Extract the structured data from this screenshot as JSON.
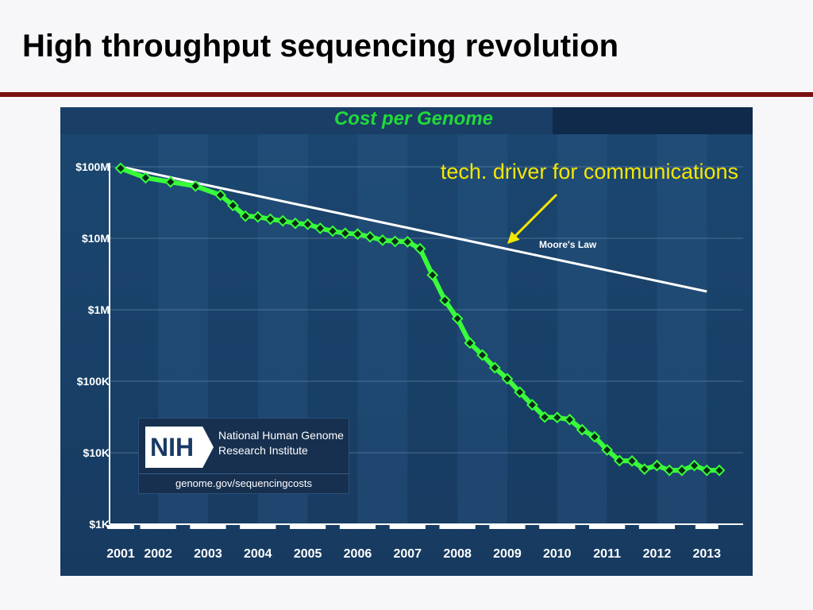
{
  "slide": {
    "title": "High throughput sequencing revolution",
    "annotation": "tech. driver for communications",
    "annotation_color": "#f7e600",
    "rule_color": "#7a1010"
  },
  "nih": {
    "logo_text": "NIH",
    "name_line1": "National Human Genome",
    "name_line2": "Research Institute",
    "url": "genome.gov/sequencingcosts"
  },
  "chart_data": {
    "type": "line",
    "title": "Cost per Genome",
    "title_color": "#22d93a",
    "y_scale": "log",
    "ylim": [
      1000,
      100000000
    ],
    "y_ticks": [
      {
        "value": 100000000,
        "label": "$100M"
      },
      {
        "value": 10000000,
        "label": "$10M"
      },
      {
        "value": 1000000,
        "label": "$1M"
      },
      {
        "value": 100000,
        "label": "$100K"
      },
      {
        "value": 10000,
        "label": "$10K"
      },
      {
        "value": 1000,
        "label": "$1K"
      }
    ],
    "x_ticks": [
      {
        "value": 2001.0,
        "label": "2001"
      },
      {
        "value": 2001.75,
        "label": "2002"
      },
      {
        "value": 2002.75,
        "label": "2003"
      },
      {
        "value": 2003.75,
        "label": "2004"
      },
      {
        "value": 2004.75,
        "label": "2005"
      },
      {
        "value": 2005.75,
        "label": "2006"
      },
      {
        "value": 2006.75,
        "label": "2007"
      },
      {
        "value": 2007.75,
        "label": "2008"
      },
      {
        "value": 2008.75,
        "label": "2009"
      },
      {
        "value": 2009.75,
        "label": "2010"
      },
      {
        "value": 2010.75,
        "label": "2011"
      },
      {
        "value": 2011.75,
        "label": "2012"
      },
      {
        "value": 2012.75,
        "label": "2013"
      }
    ],
    "grid": true,
    "series": [
      {
        "name": "",
        "color": "#39ff3a",
        "x": [
          2001.0,
          2001.5,
          2002.0,
          2002.5,
          2003.0,
          2003.25,
          2003.5,
          2003.75,
          2004.0,
          2004.25,
          2004.5,
          2004.75,
          2005.0,
          2005.25,
          2005.5,
          2005.75,
          2006.0,
          2006.25,
          2006.5,
          2006.75,
          2007.0,
          2007.25,
          2007.5,
          2007.75,
          2008.0,
          2008.25,
          2008.5,
          2008.75,
          2009.0,
          2009.25,
          2009.5,
          2009.75,
          2010.0,
          2010.25,
          2010.5,
          2010.75,
          2011.0,
          2011.25,
          2011.5,
          2011.75,
          2012.0,
          2012.25,
          2012.5,
          2012.75,
          2013.0
        ],
        "values": [
          95263072,
          70175437,
          61448422,
          53751684,
          40157225,
          28780376,
          20442576,
          19934858,
          18519312,
          17534864,
          16159151,
          15727302,
          13801124,
          12585480,
          11732535,
          11455315,
          10474556,
          9408739,
          9047002,
          8927342,
          7147571,
          3063820,
          1352982,
          752080,
          342502,
          232735,
          154714,
          108065,
          70333,
          46774,
          31512,
          31125,
          29092,
          20963,
          16712,
          10956,
          7743,
          7666,
          5901,
          6618,
          5670,
          5671,
          6618,
          5670,
          5671
        ]
      },
      {
        "name": "Moore's Law",
        "color": "#ffffff",
        "x": [
          2001.0,
          2012.75
        ],
        "values": [
          100000000,
          1800000
        ]
      }
    ]
  }
}
